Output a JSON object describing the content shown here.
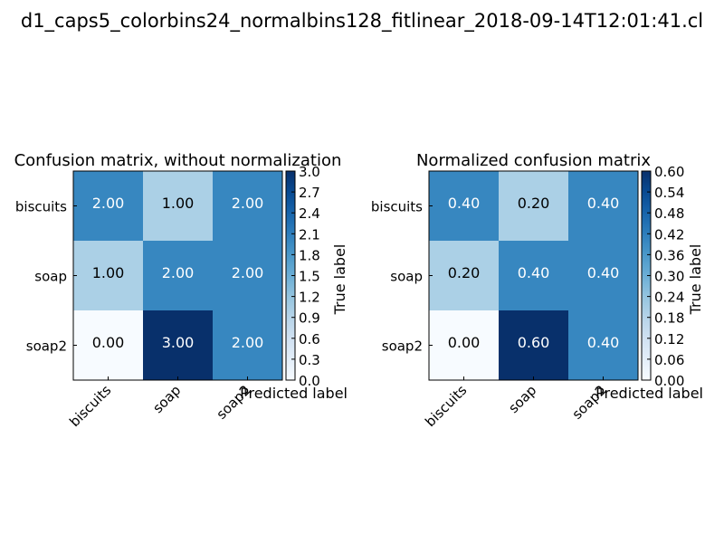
{
  "suptitle": "d1_caps5_colorbins24_normalbins128_fitlinear_2018-09-14T12:01:41.cl",
  "chart_data": [
    {
      "type": "heatmap",
      "title": "Confusion matrix, without normalization",
      "xlabel": "Predicted label",
      "ylabel": "True label",
      "row_labels": [
        "biscuits",
        "soap",
        "soap2"
      ],
      "col_labels": [
        "biscuits",
        "soap",
        "soap2"
      ],
      "cell_text": [
        [
          "2.00",
          "1.00",
          "2.00"
        ],
        [
          "1.00",
          "2.00",
          "2.00"
        ],
        [
          "0.00",
          "3.00",
          "2.00"
        ]
      ],
      "values": [
        [
          2,
          1,
          2
        ],
        [
          1,
          2,
          2
        ],
        [
          0,
          3,
          2
        ]
      ],
      "colorbar": {
        "range": [
          0,
          3
        ],
        "ticks": [
          "0.0",
          "0.3",
          "0.6",
          "0.9",
          "1.2",
          "1.5",
          "1.8",
          "2.1",
          "2.4",
          "2.7",
          "3.0"
        ]
      },
      "colormap": "Blues"
    },
    {
      "type": "heatmap",
      "title": "Normalized confusion matrix",
      "xlabel": "Predicted label",
      "ylabel": "True label",
      "row_labels": [
        "biscuits",
        "soap",
        "soap2"
      ],
      "col_labels": [
        "biscuits",
        "soap",
        "soap2"
      ],
      "cell_text": [
        [
          "0.40",
          "0.20",
          "0.40"
        ],
        [
          "0.20",
          "0.40",
          "0.40"
        ],
        [
          "0.00",
          "0.60",
          "0.40"
        ]
      ],
      "values": [
        [
          0.4,
          0.2,
          0.4
        ],
        [
          0.2,
          0.4,
          0.4
        ],
        [
          0.0,
          0.6,
          0.4
        ]
      ],
      "colorbar": {
        "range": [
          0,
          0.6
        ],
        "ticks": [
          "0.00",
          "0.06",
          "0.12",
          "0.18",
          "0.24",
          "0.30",
          "0.36",
          "0.42",
          "0.48",
          "0.54",
          "0.60"
        ]
      },
      "colormap": "Blues"
    }
  ]
}
